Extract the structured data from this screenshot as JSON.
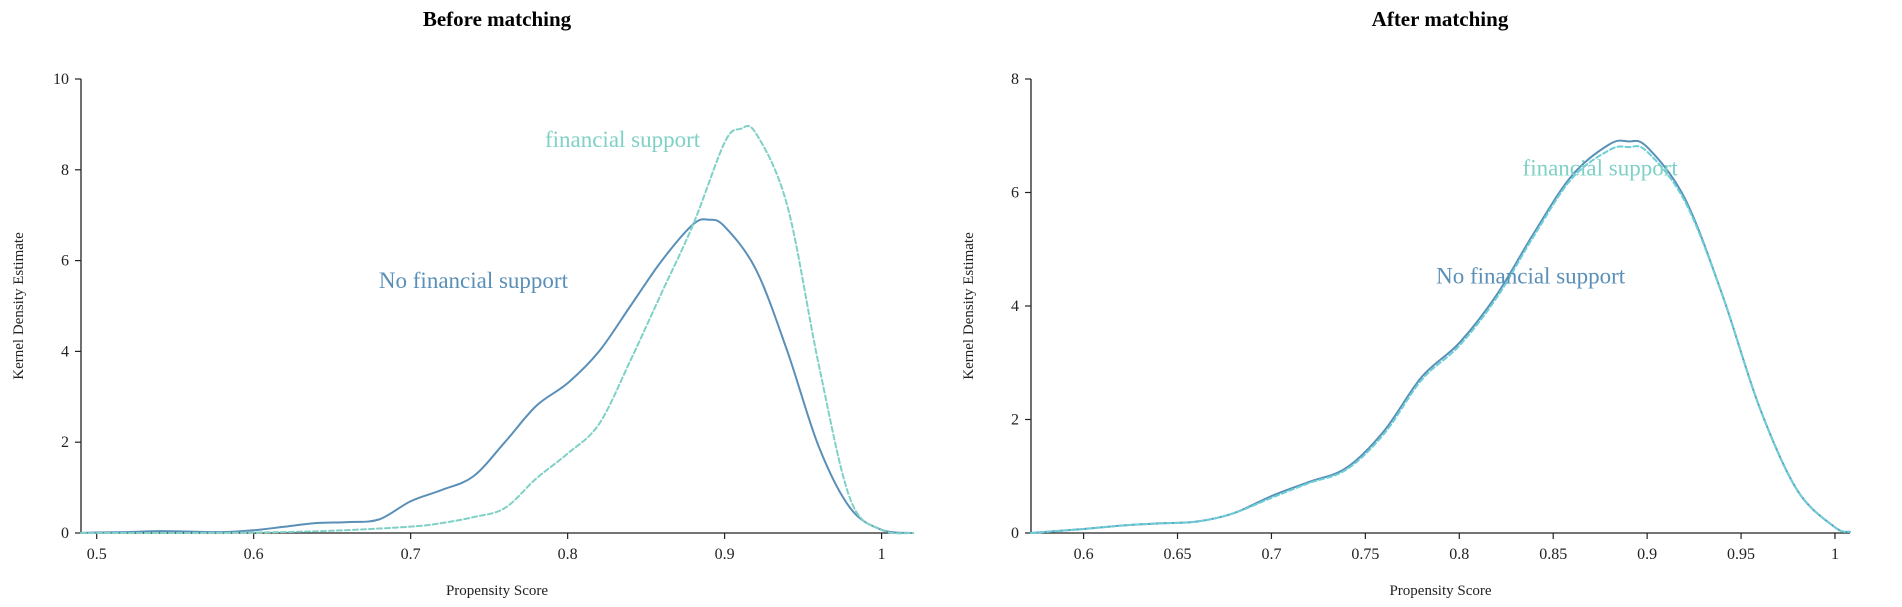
{
  "chart_data": [
    {
      "type": "line",
      "title": "Before matching",
      "xlabel": "Propensity Score",
      "ylabel": "Kernel Density Estimate",
      "xlim": [
        0.49,
        1.02
      ],
      "ylim": [
        0,
        10
      ],
      "xticks": [
        "0.5",
        "0.6",
        "0.7",
        "0.8",
        "0.9",
        "1"
      ],
      "yticks": [
        "0",
        "2",
        "4",
        "6",
        "8",
        "10"
      ],
      "grid": false,
      "series": [
        {
          "name": "No financial support",
          "style": "solid",
          "color": "#5a8fb8",
          "x": [
            0.49,
            0.5,
            0.52,
            0.54,
            0.56,
            0.58,
            0.6,
            0.62,
            0.64,
            0.66,
            0.68,
            0.7,
            0.72,
            0.74,
            0.76,
            0.78,
            0.8,
            0.82,
            0.84,
            0.86,
            0.88,
            0.89,
            0.9,
            0.92,
            0.94,
            0.96,
            0.98,
            1.0,
            1.02
          ],
          "y": [
            0.0,
            0.01,
            0.02,
            0.04,
            0.03,
            0.02,
            0.06,
            0.14,
            0.22,
            0.24,
            0.3,
            0.7,
            0.95,
            1.25,
            2.0,
            2.8,
            3.3,
            4.0,
            5.0,
            6.0,
            6.8,
            6.9,
            6.75,
            5.8,
            4.0,
            1.9,
            0.55,
            0.07,
            0.0
          ]
        },
        {
          "name": "financial support",
          "style": "dashed",
          "color": "#7fd1c7",
          "x": [
            0.49,
            0.5,
            0.55,
            0.6,
            0.65,
            0.7,
            0.72,
            0.74,
            0.76,
            0.78,
            0.8,
            0.82,
            0.84,
            0.86,
            0.88,
            0.9,
            0.91,
            0.92,
            0.94,
            0.96,
            0.98,
            1.0,
            1.02
          ],
          "y": [
            0.0,
            0.0,
            0.0,
            0.01,
            0.05,
            0.14,
            0.22,
            0.35,
            0.55,
            1.2,
            1.75,
            2.4,
            3.8,
            5.3,
            6.8,
            8.6,
            8.9,
            8.8,
            7.2,
            3.7,
            0.75,
            0.07,
            0.0
          ]
        }
      ],
      "annotations": [
        {
          "text": "financial support",
          "x": 0.835,
          "y": 8.5,
          "color": "#7fd1c7"
        },
        {
          "text": "No financial support",
          "x": 0.74,
          "y": 5.4,
          "color": "#5a8fb8"
        }
      ]
    },
    {
      "type": "line",
      "title": "After matching",
      "xlabel": "Propensity Score",
      "ylabel": "Kernel Density Estimate",
      "xlim": [
        0.572,
        1.008
      ],
      "ylim": [
        0,
        8
      ],
      "xticks": [
        "0.6",
        "0.65",
        "0.7",
        "0.75",
        "0.8",
        "0.85",
        "0.9",
        "0.95",
        "1"
      ],
      "yticks": [
        "0",
        "2",
        "4",
        "6",
        "8"
      ],
      "grid": false,
      "series": [
        {
          "name": "No financial support",
          "style": "solid",
          "color": "#5a8fb8",
          "x": [
            0.572,
            0.6,
            0.62,
            0.64,
            0.66,
            0.68,
            0.7,
            0.72,
            0.74,
            0.76,
            0.78,
            0.8,
            0.82,
            0.84,
            0.86,
            0.88,
            0.89,
            0.9,
            0.92,
            0.94,
            0.96,
            0.98,
            1.0,
            1.008
          ],
          "y": [
            0.0,
            0.07,
            0.13,
            0.17,
            0.2,
            0.35,
            0.65,
            0.9,
            1.15,
            1.8,
            2.75,
            3.35,
            4.2,
            5.3,
            6.3,
            6.85,
            6.9,
            6.8,
            5.9,
            4.2,
            2.2,
            0.75,
            0.1,
            0.02
          ]
        },
        {
          "name": "financial support",
          "style": "dashed",
          "color": "#6ccfd6",
          "x": [
            0.572,
            0.6,
            0.62,
            0.64,
            0.66,
            0.68,
            0.7,
            0.72,
            0.74,
            0.76,
            0.78,
            0.8,
            0.82,
            0.84,
            0.86,
            0.88,
            0.89,
            0.9,
            0.92,
            0.94,
            0.96,
            0.98,
            1.0,
            1.008
          ],
          "y": [
            0.0,
            0.07,
            0.13,
            0.17,
            0.2,
            0.35,
            0.62,
            0.88,
            1.12,
            1.75,
            2.7,
            3.3,
            4.15,
            5.25,
            6.25,
            6.75,
            6.8,
            6.72,
            5.85,
            4.2,
            2.2,
            0.75,
            0.1,
            0.02
          ]
        }
      ],
      "annotations": [
        {
          "text": "financial support",
          "x": 0.875,
          "y": 6.3,
          "color": "#7fd1c7"
        },
        {
          "text": "No financial support",
          "x": 0.838,
          "y": 4.4,
          "color": "#5a8fb8"
        }
      ]
    }
  ]
}
